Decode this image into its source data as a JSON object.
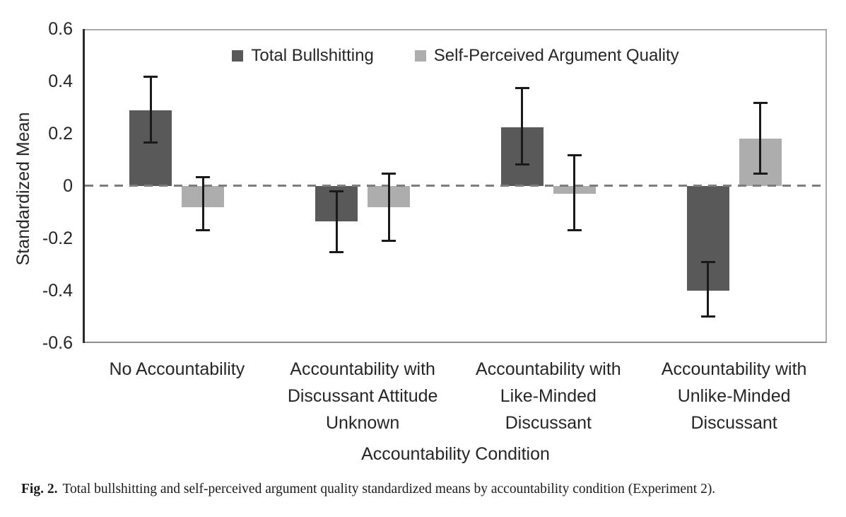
{
  "figure": {
    "caption_label": "Fig. 2.",
    "caption_text": "Total bullshitting and self-perceived argument quality standardized means by accountability condition (Experiment 2)."
  },
  "chart_data": {
    "type": "bar",
    "title": "",
    "xlabel": "Accountability Condition",
    "ylabel": "Standardized Mean",
    "ylim": [
      -0.6,
      0.6
    ],
    "yticks": [
      0.6,
      0.4,
      0.2,
      0,
      -0.2,
      -0.4,
      -0.6
    ],
    "ytick_labels": [
      "0.6",
      "0.4",
      "0.2",
      "0",
      "-0.2",
      "-0.4",
      "-0.6"
    ],
    "grid": false,
    "zero_line_style": "dashed",
    "legend_position": "top-center",
    "categories": [
      "No Accountability",
      "Accountability with Discussant Attitude Unknown",
      "Accountability with Like-Minded Discussant",
      "Accountability with Unlike-Minded Discussant"
    ],
    "category_label_lines": [
      [
        "No Accountability"
      ],
      [
        "Accountability with",
        "Discussant Attitude",
        "Unknown"
      ],
      [
        "Accountability with",
        "Like-Minded",
        "Discussant"
      ],
      [
        "Accountability with",
        "Unlike-Minded",
        "Discussant"
      ]
    ],
    "series": [
      {
        "name": "Total Bullshitting",
        "color": "#595959",
        "values": [
          0.29,
          -0.135,
          0.225,
          -0.4
        ],
        "error_low": [
          0.165,
          -0.255,
          0.08,
          -0.5
        ],
        "error_high": [
          0.42,
          -0.02,
          0.375,
          -0.29
        ]
      },
      {
        "name": "Self-Perceived Argument Quality",
        "color": "#adadad",
        "values": [
          -0.08,
          -0.08,
          -0.03,
          0.18
        ],
        "error_low": [
          -0.17,
          -0.21,
          -0.17,
          0.045
        ],
        "error_high": [
          0.035,
          0.05,
          0.12,
          0.32
        ]
      }
    ]
  }
}
